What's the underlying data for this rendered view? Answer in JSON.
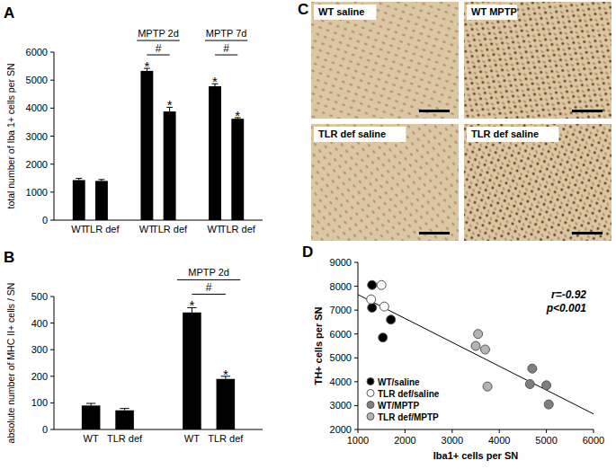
{
  "chart_data": [
    {
      "type": "bar",
      "title": "A",
      "ylabel": "total number of Iba 1+ cells per SN",
      "ylim": [
        0,
        6000
      ],
      "yticks": [
        0,
        1000,
        2000,
        3000,
        4000,
        5000,
        6000
      ],
      "grid": false,
      "color": "#000000",
      "groups": [
        {
          "label": null,
          "categories": [
            "WT",
            "TLR def"
          ],
          "values": [
            1430,
            1400
          ],
          "errors": [
            60,
            50
          ],
          "stars": [
            null,
            null
          ],
          "bracket": null
        },
        {
          "label": "MPTP 2d",
          "categories": [
            "WT",
            "TLR def"
          ],
          "values": [
            5330,
            3880
          ],
          "errors": [
            90,
            150
          ],
          "stars": [
            "*",
            "*"
          ],
          "bracket": "#"
        },
        {
          "label": "MPTP 7d",
          "categories": [
            "WT",
            "TLR def"
          ],
          "values": [
            4780,
            3620
          ],
          "errors": [
            90,
            40
          ],
          "stars": [
            "*",
            "*"
          ],
          "bracket": "#"
        }
      ]
    },
    {
      "type": "bar",
      "title": "B",
      "ylabel": "absolute number of MHC II+ cells / SN",
      "ylim": [
        0,
        500
      ],
      "yticks": [
        0,
        100,
        200,
        300,
        400,
        500
      ],
      "grid": false,
      "color": "#000000",
      "groups": [
        {
          "label": null,
          "categories": [
            "WT",
            "TLR def"
          ],
          "values": [
            90,
            72
          ],
          "errors": [
            8,
            7
          ],
          "stars": [
            null,
            null
          ],
          "bracket": null
        },
        {
          "label": "MPTP 2d",
          "categories": [
            "WT",
            "TLR def"
          ],
          "values": [
            440,
            190
          ],
          "errors": [
            18,
            10
          ],
          "stars": [
            "*",
            "*"
          ],
          "bracket": "#"
        }
      ]
    },
    {
      "type": "scatter",
      "title": "D",
      "xlabel": "Iba1+ cells per SN",
      "ylabel": "TH+ cells per SN",
      "xlim": [
        1000,
        6000
      ],
      "xticks": [
        1000,
        2000,
        3000,
        4000,
        5000,
        6000
      ],
      "ylim": [
        2000,
        9000
      ],
      "yticks": [
        2000,
        3000,
        4000,
        5000,
        6000,
        7000,
        8000,
        9000
      ],
      "grid": false,
      "legend": "lower left",
      "marker": "circle",
      "annotations": [
        "r=-0.92",
        "p<0.001"
      ],
      "fit": {
        "x": [
          1000,
          6000
        ],
        "y": [
          7650,
          2650
        ]
      },
      "series": [
        {
          "name": "WT/saline",
          "color": "#000000",
          "x": [
            1300,
            1300,
            1530,
            1700
          ],
          "y": [
            8050,
            7100,
            5850,
            6600
          ]
        },
        {
          "name": "TLR def/saline",
          "color": "#ffffff",
          "x": [
            1280,
            1500,
            1560
          ],
          "y": [
            7450,
            8050,
            7150
          ]
        },
        {
          "name": "WT/MPTP",
          "color": "#7f7f7f",
          "x": [
            4700,
            4650,
            5000,
            5050
          ],
          "y": [
            4550,
            3900,
            3850,
            3050
          ]
        },
        {
          "name": "TLR def/MPTP",
          "color": "#b3b3b3",
          "x": [
            3550,
            3500,
            3700,
            3750
          ],
          "y": [
            6000,
            5500,
            5350,
            3800
          ]
        }
      ]
    }
  ],
  "panel_c": {
    "title": "C",
    "images": [
      {
        "label": "WT saline"
      },
      {
        "label": "WT MPTP"
      },
      {
        "label": "TLR def saline"
      },
      {
        "label": "TLR def saline"
      }
    ]
  }
}
